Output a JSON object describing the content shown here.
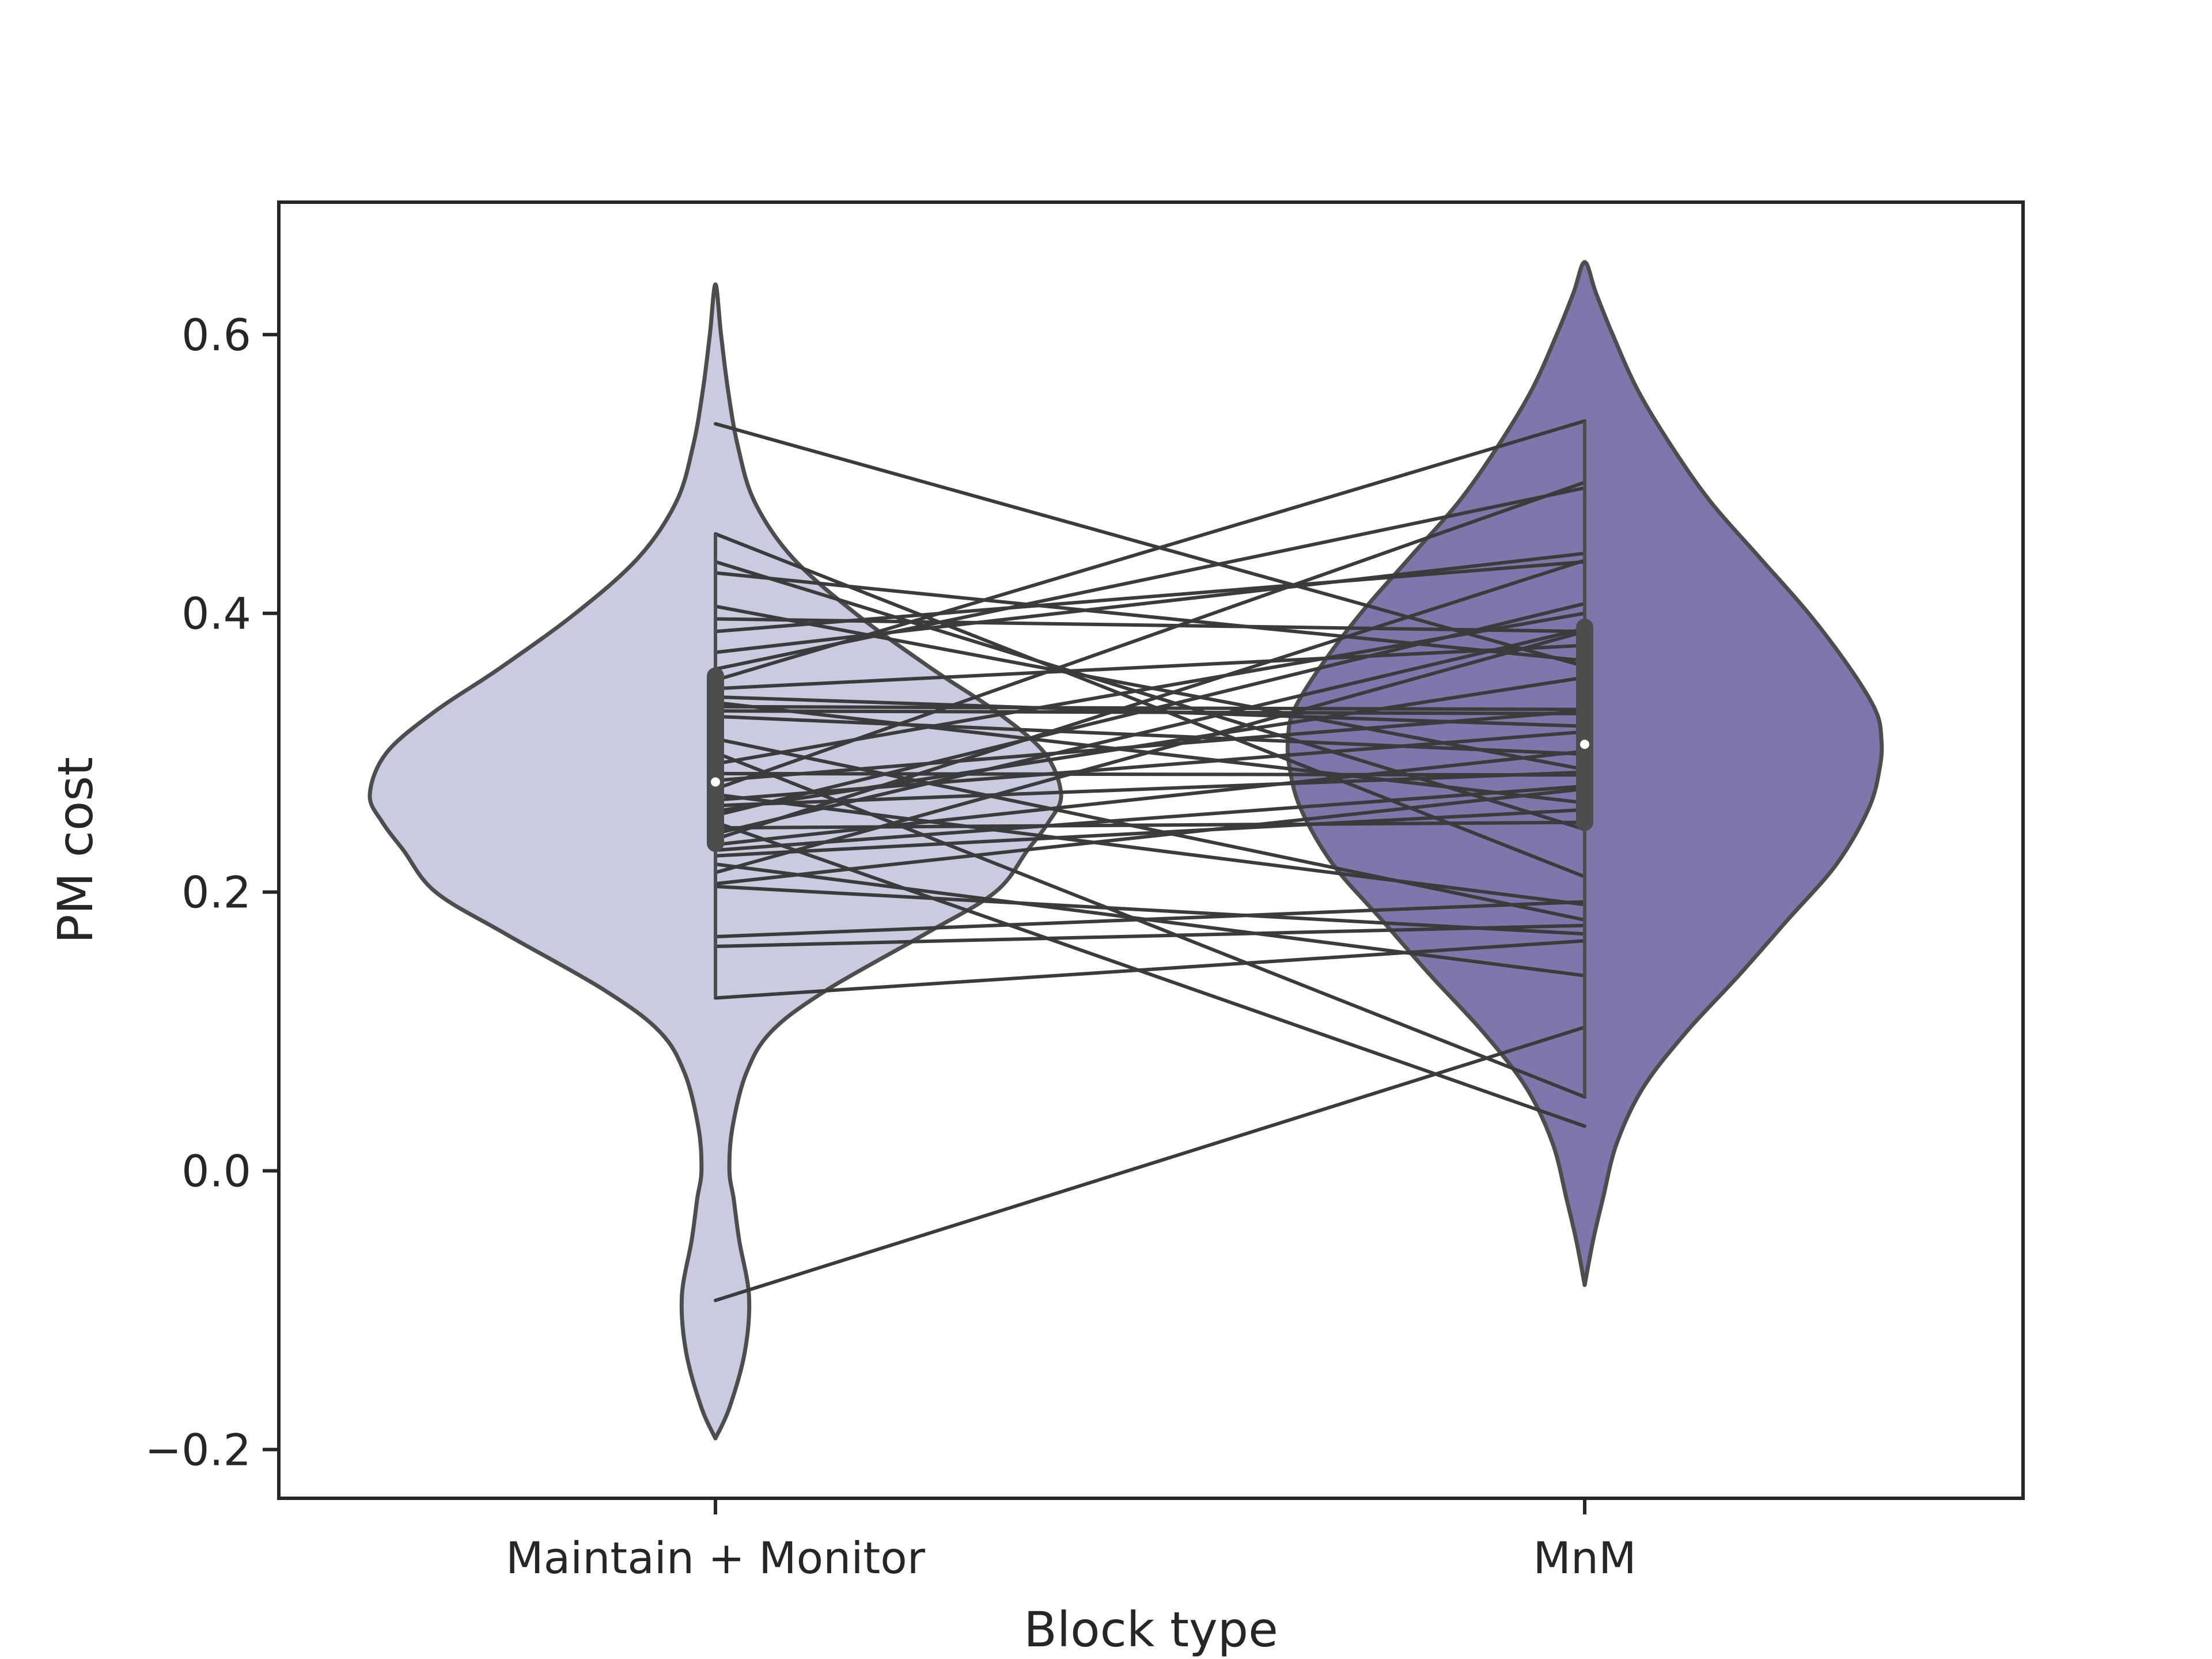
{
  "chart_data": {
    "type": "violin",
    "title": "",
    "xlabel": "Block type",
    "ylabel": "PM cost",
    "categories": [
      "Maintain + Monitor",
      "MnM"
    ],
    "ylim": [
      -0.235,
      0.695
    ],
    "yticks": [
      -0.2,
      0.0,
      0.2,
      0.4,
      0.6
    ],
    "ytick_labels": [
      "−0.2",
      "0.0",
      "0.2",
      "0.4",
      "0.6"
    ],
    "grid": false,
    "legend": "none",
    "colors": {
      "maintain_monitor": "#cacbe1",
      "mnm": "#7f76ac",
      "outline": "#4d4d4d",
      "pair_lines": "#3b3b3b",
      "axes": "#262626"
    },
    "violins": [
      {
        "category": "Maintain + Monitor",
        "min": 0.125,
        "max": 0.457,
        "q1": 0.235,
        "median": 0.279,
        "q3": 0.355,
        "kde_extent": [
          -0.192,
          0.636
        ],
        "density": [
          [
            -0.192,
            0.0
          ],
          [
            -0.17,
            0.1
          ],
          [
            -0.13,
            0.21
          ],
          [
            -0.09,
            0.24
          ],
          [
            -0.05,
            0.17
          ],
          [
            -0.02,
            0.13
          ],
          [
            0.0,
            0.1
          ],
          [
            0.03,
            0.12
          ],
          [
            0.07,
            0.22
          ],
          [
            0.1,
            0.4
          ],
          [
            0.13,
            0.8
          ],
          [
            0.17,
            1.5
          ],
          [
            0.2,
            2.0
          ],
          [
            0.23,
            2.23
          ],
          [
            0.25,
            2.38
          ],
          [
            0.27,
            2.47
          ],
          [
            0.3,
            2.35
          ],
          [
            0.33,
            2.0
          ],
          [
            0.36,
            1.55
          ],
          [
            0.4,
            1.0
          ],
          [
            0.44,
            0.55
          ],
          [
            0.48,
            0.28
          ],
          [
            0.52,
            0.16
          ],
          [
            0.56,
            0.09
          ],
          [
            0.6,
            0.04
          ],
          [
            0.636,
            0.0
          ]
        ],
        "density_max": 2.47
      },
      {
        "category": "MnM",
        "min": 0.053,
        "max": 0.538,
        "q1": 0.25,
        "median": 0.306,
        "q3": 0.39,
        "kde_extent": [
          -0.082,
          0.652
        ],
        "density": [
          [
            -0.082,
            0.0
          ],
          [
            -0.05,
            0.06
          ],
          [
            -0.02,
            0.13
          ],
          [
            0.02,
            0.23
          ],
          [
            0.06,
            0.42
          ],
          [
            0.1,
            0.73
          ],
          [
            0.14,
            1.1
          ],
          [
            0.18,
            1.45
          ],
          [
            0.22,
            1.8
          ],
          [
            0.26,
            2.03
          ],
          [
            0.29,
            2.11
          ],
          [
            0.31,
            2.12
          ],
          [
            0.33,
            2.08
          ],
          [
            0.36,
            1.9
          ],
          [
            0.4,
            1.6
          ],
          [
            0.44,
            1.25
          ],
          [
            0.48,
            0.9
          ],
          [
            0.52,
            0.62
          ],
          [
            0.56,
            0.38
          ],
          [
            0.6,
            0.2
          ],
          [
            0.63,
            0.08
          ],
          [
            0.652,
            0.0
          ]
        ],
        "density_max": 2.12
      }
    ],
    "pairs": [
      [
        0.536,
        0.362
      ],
      [
        0.457,
        0.211
      ],
      [
        0.437,
        0.245
      ],
      [
        0.429,
        0.366
      ],
      [
        0.405,
        0.288
      ],
      [
        0.396,
        0.387
      ],
      [
        0.387,
        0.437
      ],
      [
        0.372,
        0.443
      ],
      [
        0.36,
        0.49
      ],
      [
        0.352,
        0.538
      ],
      [
        0.346,
        0.377
      ],
      [
        0.34,
        0.319
      ],
      [
        0.336,
        0.264
      ],
      [
        0.333,
        0.331
      ],
      [
        0.33,
        0.328
      ],
      [
        0.326,
        0.299
      ],
      [
        0.31,
        0.18
      ],
      [
        0.3,
        0.053
      ],
      [
        0.292,
        0.4
      ],
      [
        0.285,
        0.284
      ],
      [
        0.28,
        0.33
      ],
      [
        0.274,
        0.494
      ],
      [
        0.27,
        0.191
      ],
      [
        0.266,
        0.315
      ],
      [
        0.262,
        0.286
      ],
      [
        0.258,
        0.354
      ],
      [
        0.255,
        0.407
      ],
      [
        0.25,
        0.032
      ],
      [
        0.246,
        0.25
      ],
      [
        0.242,
        0.389
      ],
      [
        0.238,
        0.438
      ],
      [
        0.234,
        0.301
      ],
      [
        0.23,
        0.276
      ],
      [
        0.226,
        0.259
      ],
      [
        0.22,
        0.14
      ],
      [
        0.214,
        0.387
      ],
      [
        0.206,
        0.274
      ],
      [
        0.204,
        0.17
      ],
      [
        0.168,
        0.193
      ],
      [
        0.161,
        0.176
      ],
      [
        0.124,
        0.165
      ],
      [
        -0.093,
        0.103
      ]
    ]
  }
}
